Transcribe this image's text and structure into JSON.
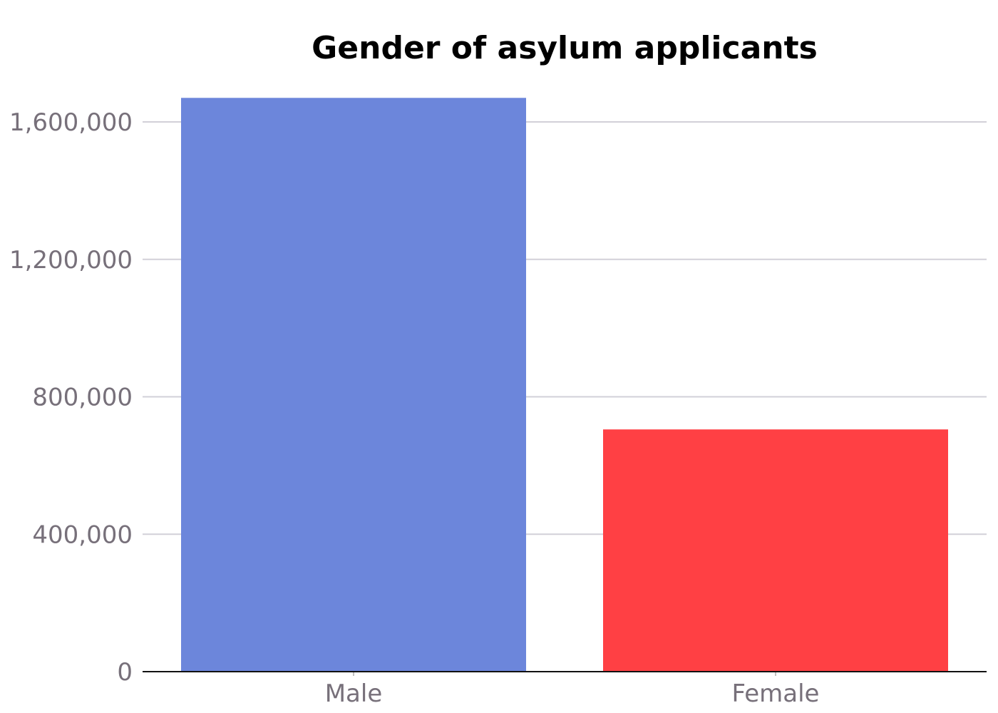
{
  "chart_data": {
    "type": "bar",
    "title": "Gender of asylum applicants",
    "xlabel": "",
    "ylabel": "",
    "categories": [
      "Male",
      "Female"
    ],
    "values": [
      1670000,
      705000
    ],
    "colors": [
      "#6c86db",
      "#ff4044"
    ],
    "ylim": [
      0,
      1680000
    ],
    "yticks": [
      0,
      400000,
      800000,
      1200000,
      1600000
    ],
    "ytick_labels": [
      "0",
      "400,000",
      "800,000",
      "1,200,000",
      "1,600,000"
    ],
    "grid": true,
    "legend": "none"
  }
}
